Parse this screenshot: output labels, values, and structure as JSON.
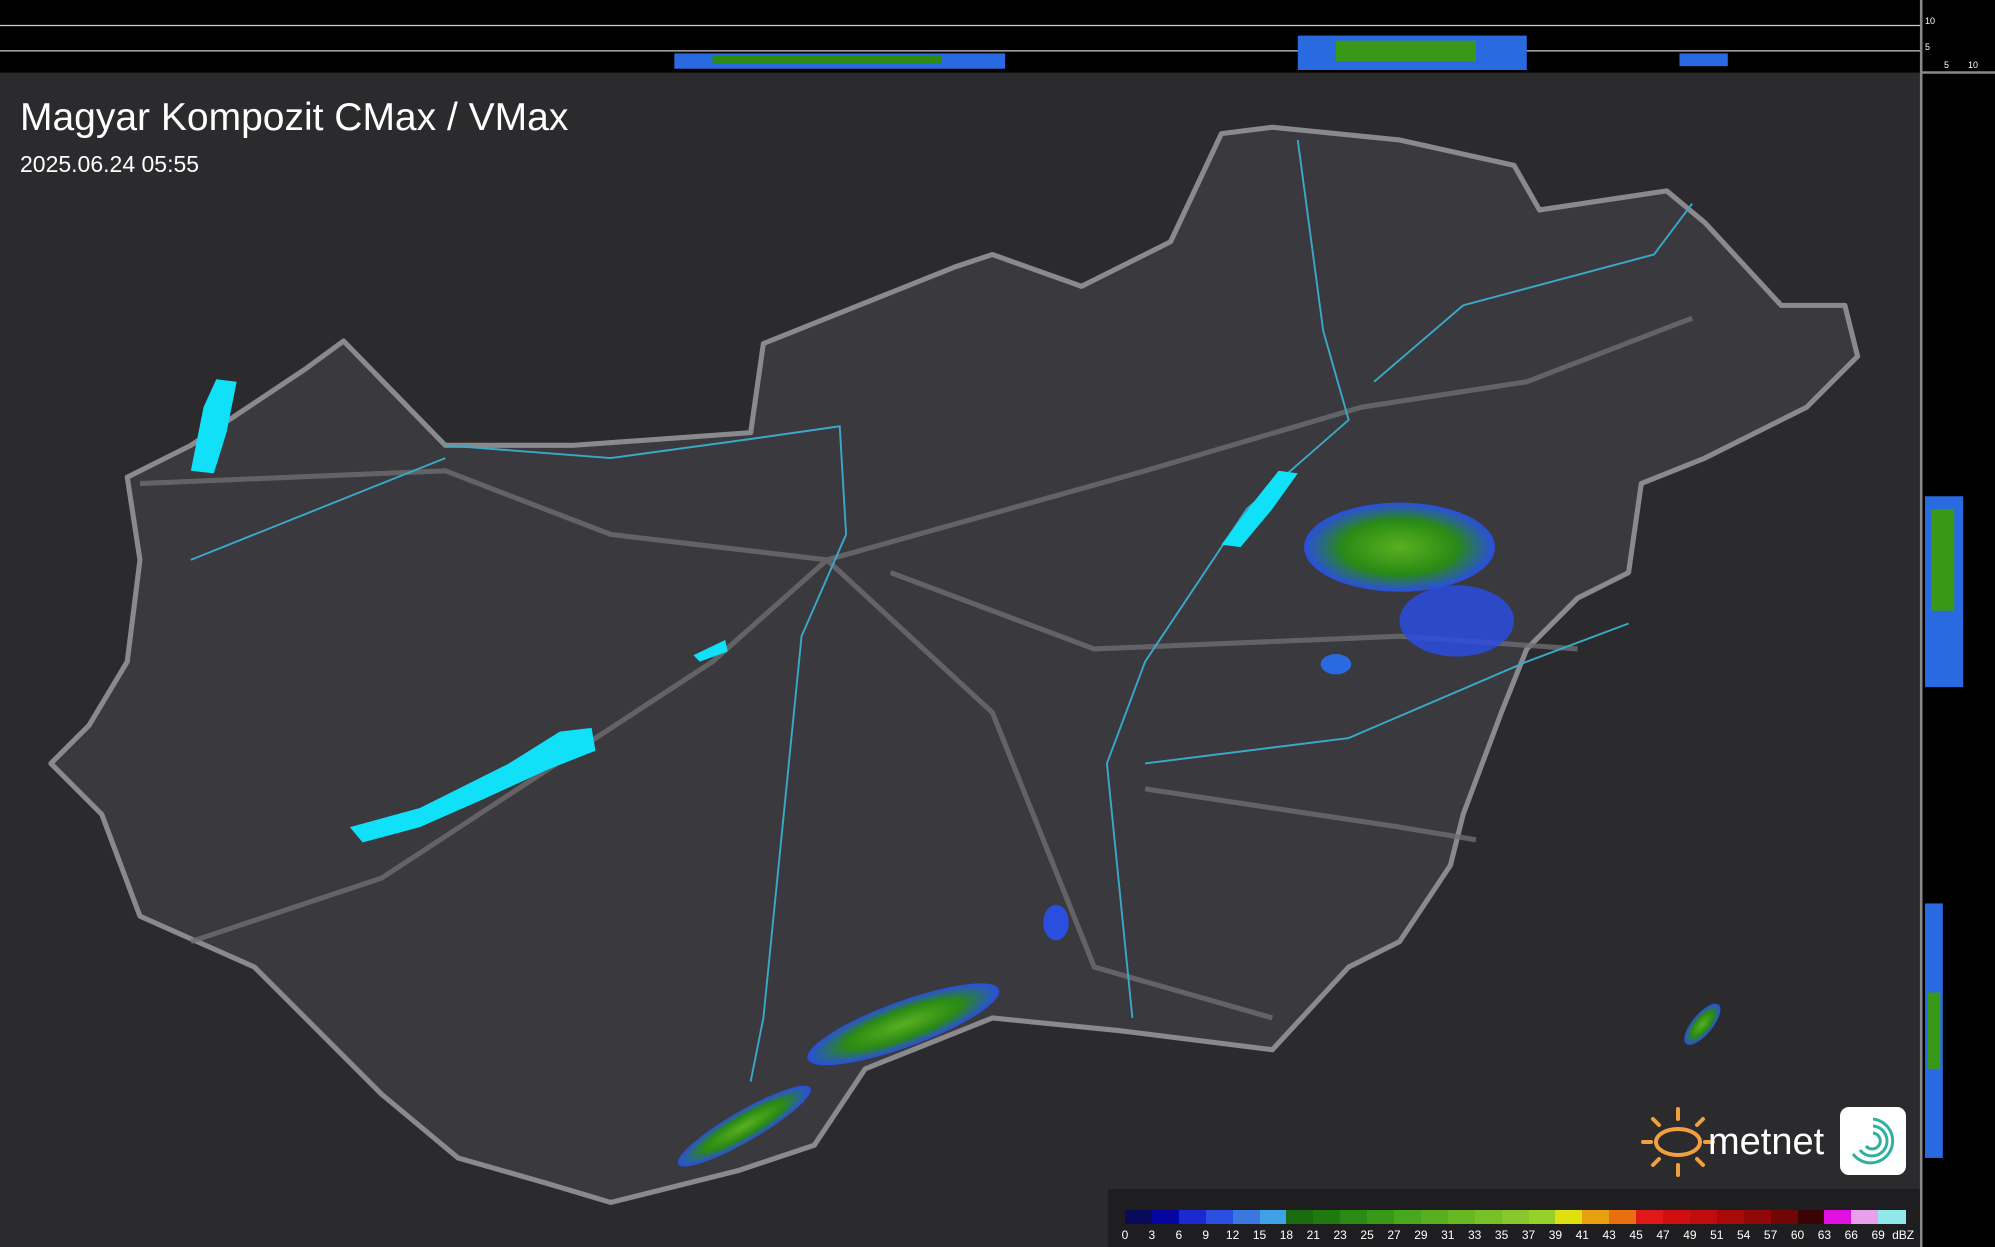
{
  "header": {
    "title": "Magyar Kompozit CMax / VMax",
    "timestamp": "2025.06.24 05:55"
  },
  "legend": {
    "unit": "dBZ",
    "labels": [
      "0",
      "3",
      "6",
      "9",
      "12",
      "15",
      "18",
      "21",
      "23",
      "25",
      "27",
      "29",
      "31",
      "33",
      "35",
      "37",
      "39",
      "41",
      "43",
      "45",
      "47",
      "49",
      "51",
      "54",
      "57",
      "60",
      "63",
      "66",
      "69"
    ],
    "colors": [
      "#0a0a5a",
      "#0505a0",
      "#1a2ad0",
      "#2a4ee0",
      "#3a78e0",
      "#40a0e8",
      "#1a6a10",
      "#1e7a0e",
      "#2a8a14",
      "#3a9818",
      "#48a81c",
      "#58b020",
      "#68b824",
      "#78c028",
      "#88c82c",
      "#98d02a",
      "#e0e010",
      "#e8a010",
      "#e87010",
      "#e01818",
      "#d01010",
      "#c00c0c",
      "#a80a0a",
      "#900808",
      "#700606",
      "#3a0404",
      "#e010e0",
      "#e8a0e8",
      "#90e8e8"
    ]
  },
  "side_profile": {
    "ticks": [
      "10",
      "5"
    ]
  },
  "bottom_profile": {
    "ticks": [
      "5",
      "10"
    ]
  },
  "branding": {
    "logo_text": "metnet"
  },
  "colors": {
    "border": "#8a8a8e",
    "river": "#3aa8c8",
    "lake": "#10e0f8",
    "background": "#2b2b2e"
  }
}
